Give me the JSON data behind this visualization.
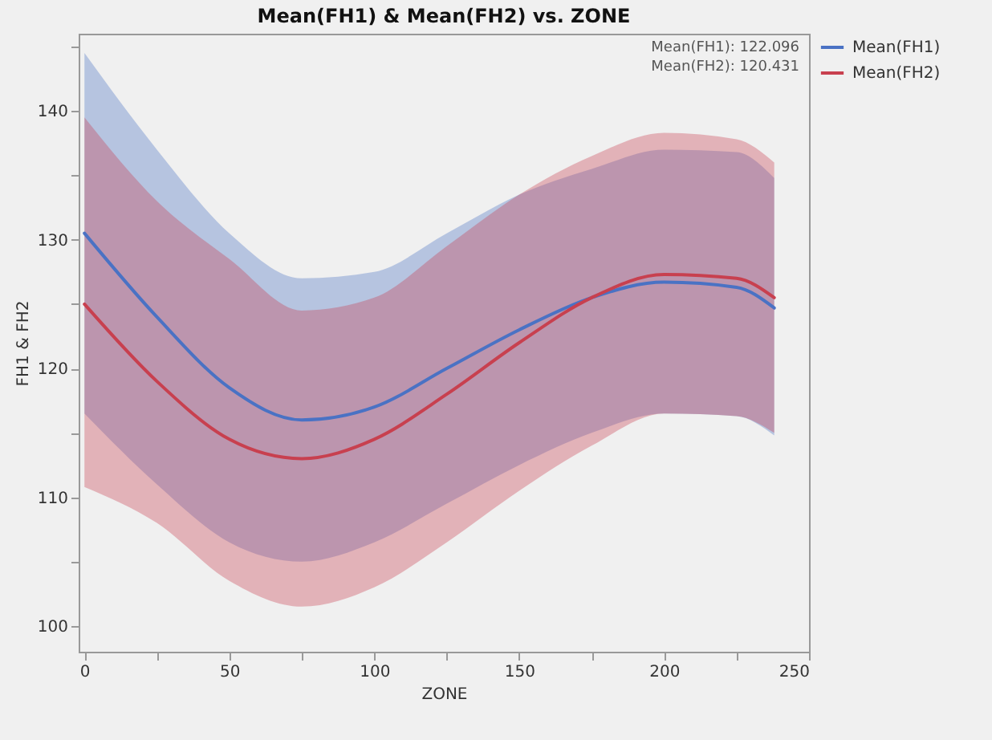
{
  "chart_data": {
    "type": "line",
    "title": "Mean(FH1) & Mean(FH2) vs. ZONE",
    "xlabel": "ZONE",
    "ylabel": "FH1 & FH2",
    "annotations": [
      "Mean(FH1): 122.096",
      "Mean(FH2): 120.431"
    ],
    "x": [
      0,
      25,
      50,
      75,
      100,
      125,
      150,
      175,
      200,
      225,
      238
    ],
    "series": [
      {
        "name": "Mean(FH1)",
        "color": "#4a72c4",
        "values": [
          130.5,
          124,
          118.5,
          116,
          117,
          120,
          123,
          125.5,
          126.7,
          126.3,
          124.7
        ],
        "lower": [
          116.5,
          111,
          106.5,
          105,
          106.5,
          109.5,
          112.5,
          115,
          116.5,
          116.3,
          114.8
        ],
        "upper": [
          144.5,
          137,
          130.5,
          127,
          127.5,
          130.5,
          133.5,
          135.5,
          137,
          136.8,
          134.8
        ]
      },
      {
        "name": "Mean(FH2)",
        "color": "#c8404f",
        "values": [
          125,
          119,
          114.5,
          113,
          114.5,
          118,
          122,
          125.5,
          127.3,
          127,
          125.5
        ],
        "lower": [
          110.8,
          108,
          103.5,
          101.5,
          103,
          106.5,
          110.5,
          114,
          116.5,
          116.3,
          115
        ],
        "upper": [
          139.5,
          133,
          128.5,
          124.5,
          125.5,
          129.5,
          133.5,
          136.5,
          138.3,
          137.8,
          136
        ]
      }
    ],
    "xlim": [
      -2,
      250
    ],
    "xticks": [
      0,
      {
        "value": 25,
        "label": null
      },
      50,
      {
        "value": 75,
        "label": null
      },
      100,
      {
        "value": 125,
        "label": null
      },
      150,
      {
        "value": 175,
        "label": null
      },
      200,
      {
        "value": 225,
        "label": null
      },
      250
    ],
    "ylim": [
      98,
      146
    ],
    "yticks": [
      100,
      {
        "value": 105,
        "label": null
      },
      110,
      {
        "value": 115,
        "label": null
      },
      120,
      {
        "value": 125,
        "label": null
      },
      130,
      {
        "value": 135,
        "label": null
      },
      140,
      {
        "value": 145,
        "label": null
      }
    ],
    "grid": false,
    "legend": "top right",
    "marker": "none",
    "line_style": "solid"
  }
}
